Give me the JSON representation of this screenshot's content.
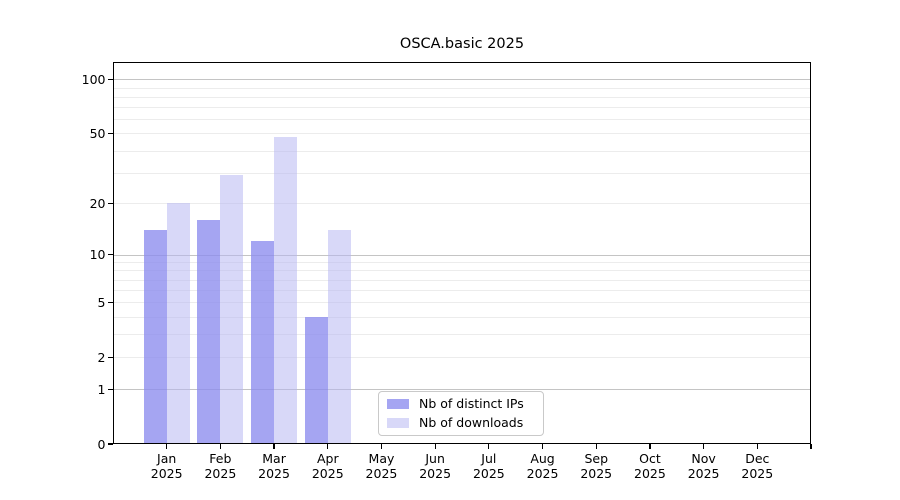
{
  "title": "OSCA.basic 2025",
  "chart_data": {
    "type": "bar",
    "title": "OSCA.basic 2025",
    "categories": [
      "Jan",
      "Feb",
      "Mar",
      "Apr",
      "May",
      "Jun",
      "Jul",
      "Aug",
      "Sep",
      "Oct",
      "Nov",
      "Dec"
    ],
    "year_label": "2025",
    "series": [
      {
        "name": "Nb of distinct IPs",
        "color": "#a5a5f1",
        "color_rgba": "rgba(140,140,238,0.78)",
        "values": [
          14,
          16,
          12,
          4,
          0,
          0,
          0,
          0,
          0,
          0,
          0,
          0
        ]
      },
      {
        "name": "Nb of downloads",
        "color": "#d8d8f7",
        "color_rgba": "rgba(180,180,242,0.52)",
        "values": [
          20,
          29,
          48,
          14,
          0,
          0,
          0,
          0,
          0,
          0,
          0,
          0
        ]
      }
    ],
    "yscale": "log1p",
    "yticks": [
      0,
      1,
      2,
      5,
      10,
      20,
      50,
      100
    ],
    "ylim": [
      0,
      124
    ],
    "grid": {
      "on": true,
      "major": [
        1,
        10,
        100
      ],
      "minor": [
        2,
        3,
        4,
        5,
        6,
        7,
        8,
        9,
        20,
        30,
        40,
        50,
        60,
        70,
        80,
        90
      ]
    },
    "legend_position": "lower-center-inside",
    "xlabel": "",
    "ylabel": ""
  },
  "colors": {
    "background": "#ffffff",
    "axis": "#000000",
    "grid_major": "#c4c4c4",
    "grid_minor": "#ececec",
    "legend_border": "#c9c9c9",
    "ips_bar": "#a5a5f1",
    "downloads_bar": "#d8d8f7"
  }
}
